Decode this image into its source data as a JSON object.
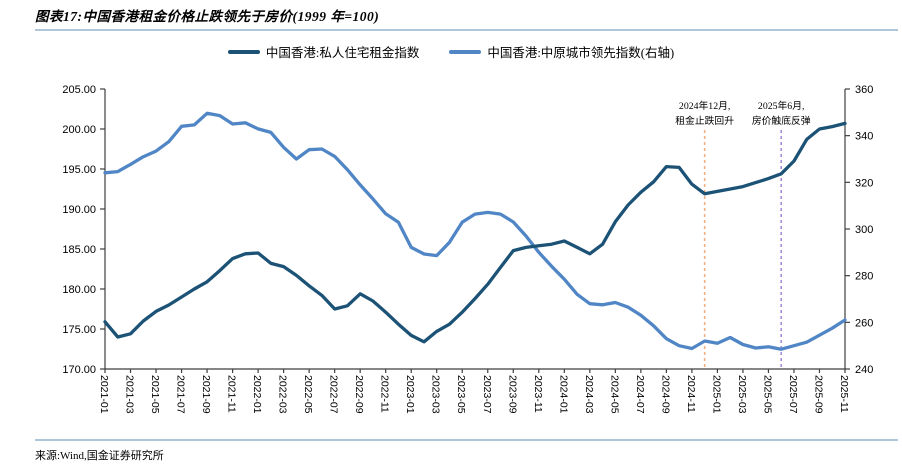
{
  "header": {
    "title": "图表17:中国香港租金价格止跌领先于房价(1999 年=100)"
  },
  "footer": {
    "source": "来源:Wind,国金证券研究所"
  },
  "colors": {
    "rent_line": "#1b5276",
    "leading_index_line": "#5086c5",
    "divider": "#aec5da",
    "axis": "#3f3f3f",
    "annotation_dec2024": "#f2b085",
    "annotation_jun2025": "#a78bd6"
  },
  "chart_data": {
    "type": "line",
    "title": "中国香港租金价格止跌领先于房价(1999 年=100)",
    "x": [
      "2021-01",
      "2021-02",
      "2021-03",
      "2021-04",
      "2021-05",
      "2021-06",
      "2021-07",
      "2021-08",
      "2021-09",
      "2021-10",
      "2021-11",
      "2021-12",
      "2022-01",
      "2022-02",
      "2022-03",
      "2022-04",
      "2022-05",
      "2022-06",
      "2022-07",
      "2022-08",
      "2022-09",
      "2022-10",
      "2022-11",
      "2022-12",
      "2023-01",
      "2023-02",
      "2023-03",
      "2023-04",
      "2023-05",
      "2023-06",
      "2023-07",
      "2023-08",
      "2023-09",
      "2023-10",
      "2023-11",
      "2023-12",
      "2024-01",
      "2024-02",
      "2024-03",
      "2024-04",
      "2024-05",
      "2024-06",
      "2024-07",
      "2024-08",
      "2024-09",
      "2024-10",
      "2024-11",
      "2024-12",
      "2025-01",
      "2025-02",
      "2025-03",
      "2025-04",
      "2025-05",
      "2025-06",
      "2025-07",
      "2025-08",
      "2025-09",
      "2025-10",
      "2025-11"
    ],
    "x_tick_every": 2,
    "series": [
      {
        "name": "中国香港:私人住宅租金指数",
        "axis": "left",
        "color": "#1b5276",
        "values": [
          175.9,
          174.0,
          174.4,
          176.0,
          177.2,
          178.0,
          179.0,
          180.0,
          180.9,
          182.3,
          183.8,
          184.4,
          184.5,
          183.2,
          182.8,
          181.7,
          180.4,
          179.2,
          177.5,
          177.9,
          179.4,
          178.5,
          177.1,
          175.6,
          174.2,
          173.4,
          174.7,
          175.6,
          177.1,
          178.8,
          180.6,
          182.7,
          184.8,
          185.2,
          185.4,
          185.6,
          186.0,
          185.2,
          184.4,
          185.6,
          188.4,
          190.5,
          192.1,
          193.4,
          195.3,
          195.2,
          193.1,
          191.9,
          192.2,
          192.5,
          192.8,
          193.3,
          193.8,
          194.4,
          196.0,
          198.7,
          200.0,
          200.3,
          200.7
        ]
      },
      {
        "name": "中国香港:中原城市领先指数(右轴)",
        "axis": "right",
        "color": "#5086c5",
        "values": [
          324.1,
          324.6,
          327.7,
          331.0,
          333.4,
          337.4,
          344.0,
          344.6,
          349.6,
          348.6,
          345.0,
          345.5,
          342.9,
          341.4,
          335.0,
          330.0,
          334.0,
          334.3,
          331.1,
          325.4,
          318.9,
          312.9,
          306.5,
          302.9,
          292.1,
          289.3,
          288.6,
          294.3,
          302.9,
          306.4,
          307.1,
          306.4,
          303.0,
          297.0,
          290.0,
          284.0,
          278.5,
          272.0,
          268.0,
          267.5,
          268.5,
          266.5,
          263.0,
          258.5,
          253.0,
          250.0,
          248.8,
          252.0,
          251.0,
          253.5,
          250.5,
          249.0,
          249.5,
          248.5,
          250.0,
          251.5,
          254.5,
          257.5,
          261.0
        ]
      }
    ],
    "left_axis": {
      "min": 170,
      "max": 205,
      "tick_labels": [
        "205.00",
        "200.00",
        "195.00",
        "190.00",
        "185.00",
        "180.00",
        "175.00",
        "170.00"
      ]
    },
    "right_axis": {
      "min": 240,
      "max": 360,
      "tick_labels": [
        "360",
        "340",
        "320",
        "300",
        "280",
        "260",
        "240"
      ]
    },
    "grid": false,
    "legend_position": "top",
    "annotations": [
      {
        "x": "2024-12",
        "lines": [
          "2024年12月,",
          "租金止跌回升"
        ],
        "color": "#f2b085"
      },
      {
        "x": "2025-06",
        "lines": [
          "2025年6月,",
          "房价触底反弹"
        ],
        "color": "#a78bd6"
      }
    ]
  }
}
